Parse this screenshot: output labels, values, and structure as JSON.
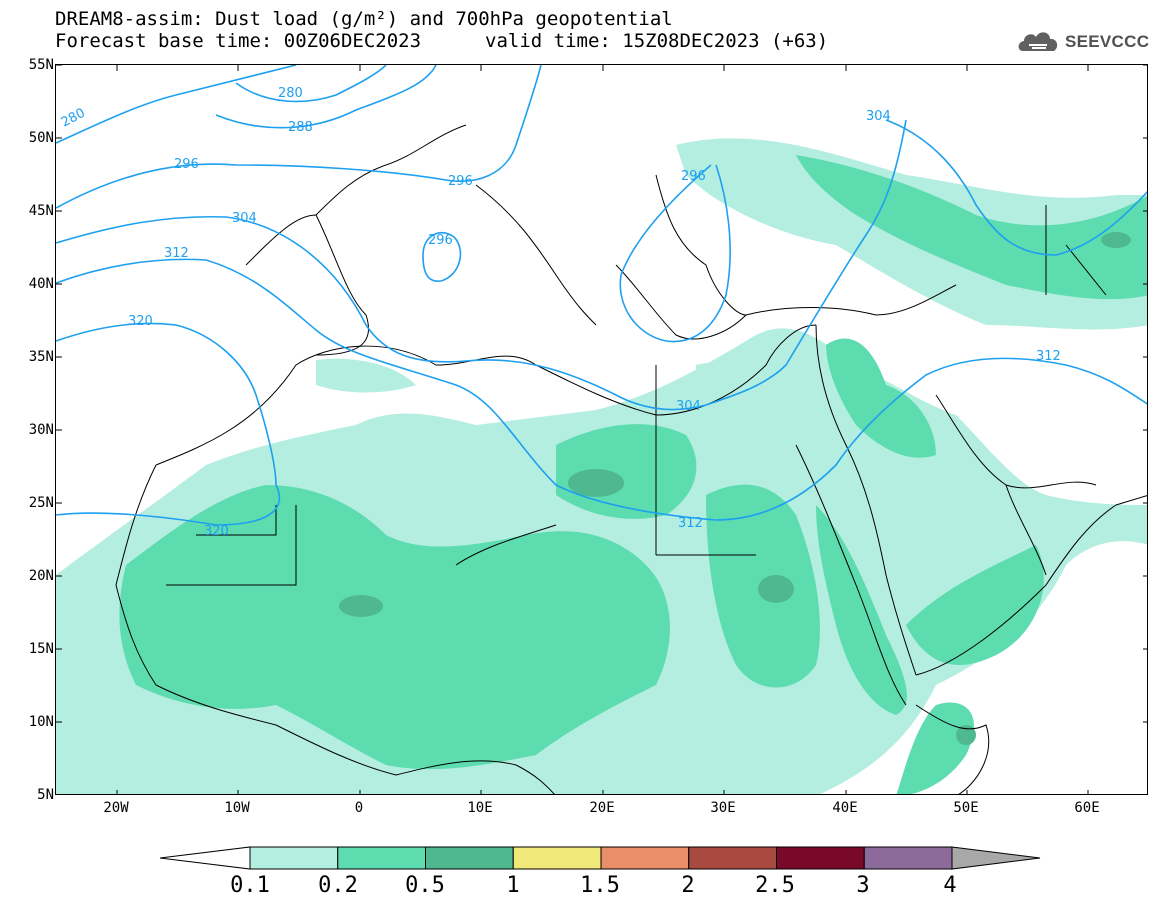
{
  "header": {
    "title_line1": "DREAM8-assim: Dust load (g/m²) and 700hPa geopotential",
    "base_time": "Forecast base time: 00Z06DEC2023",
    "valid_time": "valid time: 15Z08DEC2023 (+63)",
    "logo_text": "SEEVCCC",
    "logo_icon": "cloud-logo-icon"
  },
  "map": {
    "projection": "lat-lon",
    "lon_range": [
      -25,
      65
    ],
    "lat_range": [
      5,
      55
    ],
    "lat_labels": [
      "55N",
      "50N",
      "45N",
      "40N",
      "35N",
      "30N",
      "25N",
      "20N",
      "15N",
      "10N",
      "5N"
    ],
    "lon_labels": [
      "20W",
      "10W",
      "0",
      "10E",
      "20E",
      "30E",
      "40E",
      "50E",
      "60E"
    ],
    "contour_color": "#1ea0f0",
    "contour_labels": [
      "280",
      "280",
      "288",
      "296",
      "296",
      "296",
      "304",
      "304",
      "312",
      "320",
      "304",
      "312",
      "296",
      "320",
      "312"
    ]
  },
  "colorbar": {
    "labels": [
      "0.1",
      "0.2",
      "0.5",
      "1",
      "1.5",
      "2",
      "2.5",
      "3",
      "4"
    ],
    "colors": [
      "#b4eee0",
      "#5ddcb0",
      "#50b890",
      "#f0e878",
      "#e88e68",
      "#a84a40",
      "#7a0828",
      "#8c6a9a"
    ],
    "under_color": "#ffffff",
    "over_color": "#a8a8a8"
  }
}
